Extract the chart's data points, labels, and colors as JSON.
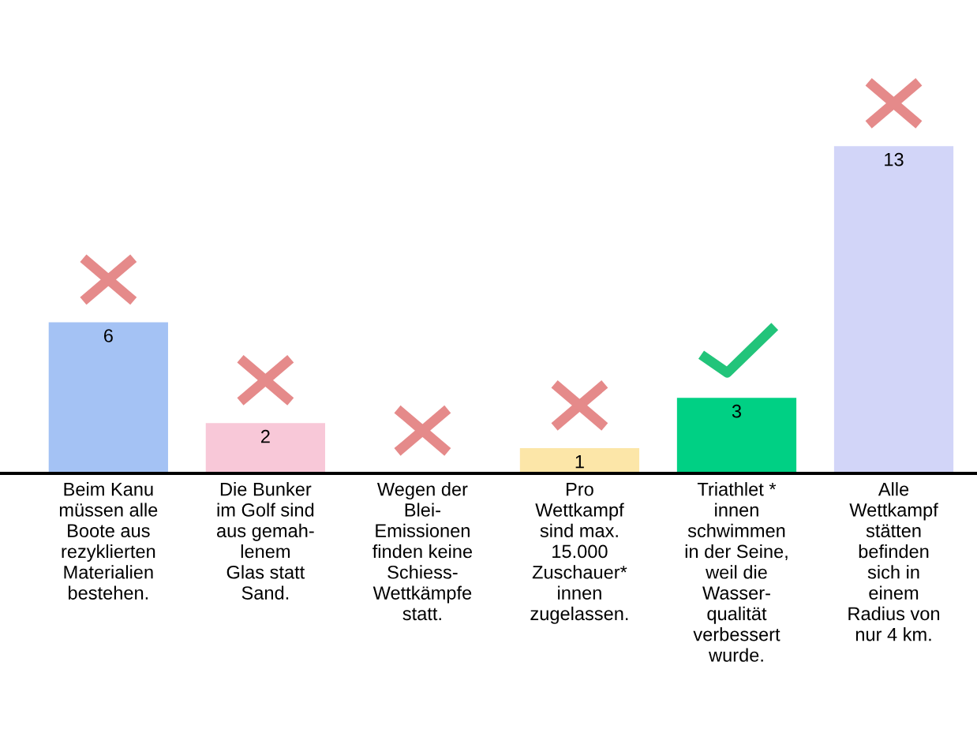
{
  "chart_data": {
    "type": "bar",
    "categories": [
      "Beim Kanu\nmüssen alle\nBoote aus\nrezyklierten\nMaterialien\nbestehen.",
      "Die Bunker\nim Golf sind\naus gemah-\nlenem\nGlas statt\nSand.",
      "Wegen der\nBlei-\nEmissionen\nfinden keine\nSchiess-\nWettkämpfe\nstatt.",
      "Pro\nWettkampf\nsind max.\n15.000\nZuschauer*\ninnen\nzugelassen.",
      "Triathlet *\ninnen\nschwimmen\nin der Seine,\nweil die\nWasser-\nqualität\nverbessert\nwurde.",
      "Alle\nWettkampf\nstätten\nbefinden\nsich in\neinem\nRadius von\nnur 4 km."
    ],
    "values": [
      6,
      2,
      0,
      1,
      3,
      13
    ],
    "colors": [
      "#a4c2f4",
      "#f8c8d8",
      "#f0f0f0",
      "#fce6a8",
      "#00d084",
      "#d2d5f8"
    ],
    "value_labels": [
      "6",
      "2",
      null,
      "1",
      "3",
      "13"
    ],
    "grid": false,
    "legend": false
  }
}
